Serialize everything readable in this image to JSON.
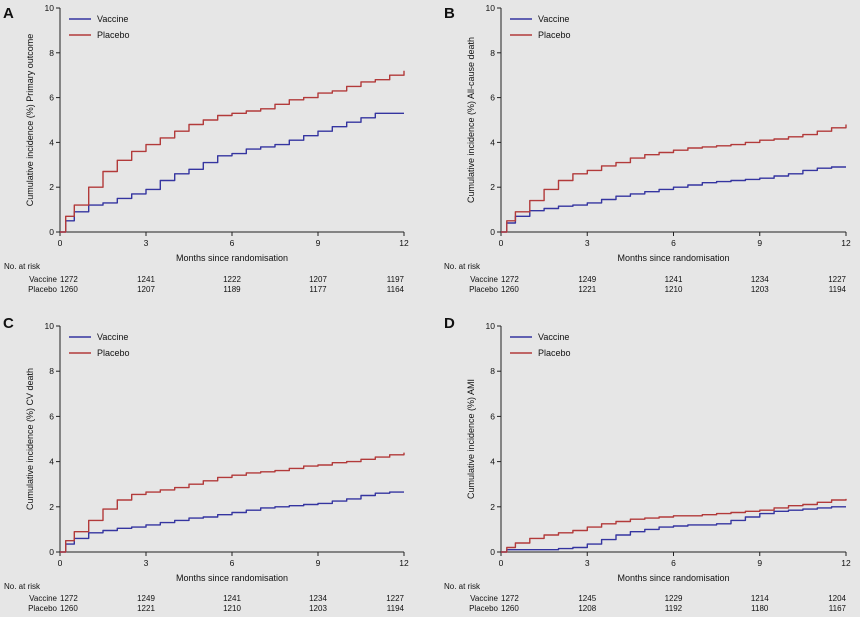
{
  "figure": {
    "xlabel": "Months since randomisation",
    "ylabel_prefix": "Cumulative incidence (%)",
    "risk_header": "No. at risk",
    "colors": {
      "vaccine": "#3535a0",
      "placebo": "#b23a3a",
      "axis": "#222222",
      "background": "#e6e6e6"
    }
  },
  "chart_data": [
    {
      "type": "line",
      "panel": "A",
      "title": "Primary outcome",
      "xlabel": "Months since randomisation",
      "ylabel": "Cumulative incidence (%)  Primary outcome",
      "xlim": [
        0,
        12
      ],
      "ylim": [
        0,
        10
      ],
      "xticks": [
        0,
        3,
        6,
        9,
        12
      ],
      "yticks": [
        0,
        2,
        4,
        6,
        8,
        10
      ],
      "legend": "top-left",
      "series": [
        {
          "name": "Vaccine",
          "color": "#3535a0",
          "x": [
            0,
            0.2,
            0.5,
            1,
            1.5,
            2,
            2.5,
            3,
            3.5,
            4,
            4.5,
            5,
            5.5,
            6,
            6.5,
            7,
            7.5,
            8,
            8.5,
            9,
            9.5,
            10,
            10.5,
            11,
            11.5,
            12
          ],
          "y": [
            0,
            0.5,
            0.9,
            1.2,
            1.3,
            1.5,
            1.7,
            1.9,
            2.3,
            2.6,
            2.8,
            3.1,
            3.4,
            3.5,
            3.7,
            3.8,
            3.9,
            4.1,
            4.3,
            4.5,
            4.7,
            4.9,
            5.1,
            5.3,
            5.3,
            5.3
          ]
        },
        {
          "name": "Placebo",
          "color": "#b23a3a",
          "x": [
            0,
            0.2,
            0.5,
            1,
            1.5,
            2,
            2.5,
            3,
            3.5,
            4,
            4.5,
            5,
            5.5,
            6,
            6.5,
            7,
            7.5,
            8,
            8.5,
            9,
            9.5,
            10,
            10.5,
            11,
            11.5,
            12
          ],
          "y": [
            0,
            0.7,
            1.2,
            2.0,
            2.7,
            3.2,
            3.6,
            3.9,
            4.2,
            4.5,
            4.8,
            5.0,
            5.2,
            5.3,
            5.4,
            5.5,
            5.7,
            5.9,
            6.0,
            6.2,
            6.3,
            6.5,
            6.7,
            6.8,
            7.0,
            7.2
          ]
        }
      ],
      "at_risk": {
        "labels": [
          "Vaccine",
          "Placebo"
        ],
        "rows": [
          [
            "1272",
            "1241",
            "1222",
            "1207",
            "1197"
          ],
          [
            "1260",
            "1207",
            "1189",
            "1177",
            "1164"
          ]
        ]
      }
    },
    {
      "type": "line",
      "panel": "B",
      "title": "All-cause death",
      "xlabel": "Months since randomisation",
      "ylabel": "Cumulative incidence (%)  All-cause death",
      "xlim": [
        0,
        12
      ],
      "ylim": [
        0,
        10
      ],
      "xticks": [
        0,
        3,
        6,
        9,
        12
      ],
      "yticks": [
        0,
        2,
        4,
        6,
        8,
        10
      ],
      "legend": "top-left",
      "series": [
        {
          "name": "Vaccine",
          "color": "#3535a0",
          "x": [
            0,
            0.2,
            0.5,
            1,
            1.5,
            2,
            2.5,
            3,
            3.5,
            4,
            4.5,
            5,
            5.5,
            6,
            6.5,
            7,
            7.5,
            8,
            8.5,
            9,
            9.5,
            10,
            10.5,
            11,
            11.5,
            12
          ],
          "y": [
            0,
            0.4,
            0.7,
            0.95,
            1.05,
            1.15,
            1.2,
            1.3,
            1.45,
            1.6,
            1.7,
            1.8,
            1.9,
            2.0,
            2.1,
            2.2,
            2.25,
            2.3,
            2.35,
            2.4,
            2.5,
            2.6,
            2.75,
            2.85,
            2.9,
            2.9
          ]
        },
        {
          "name": "Placebo",
          "color": "#b23a3a",
          "x": [
            0,
            0.2,
            0.5,
            1,
            1.5,
            2,
            2.5,
            3,
            3.5,
            4,
            4.5,
            5,
            5.5,
            6,
            6.5,
            7,
            7.5,
            8,
            8.5,
            9,
            9.5,
            10,
            10.5,
            11,
            11.5,
            12
          ],
          "y": [
            0,
            0.5,
            0.9,
            1.4,
            1.9,
            2.3,
            2.6,
            2.75,
            2.95,
            3.1,
            3.3,
            3.45,
            3.55,
            3.65,
            3.75,
            3.8,
            3.85,
            3.9,
            4.0,
            4.1,
            4.15,
            4.25,
            4.35,
            4.5,
            4.65,
            4.8
          ]
        }
      ],
      "at_risk": {
        "labels": [
          "Vaccine",
          "Placebo"
        ],
        "rows": [
          [
            "1272",
            "1249",
            "1241",
            "1234",
            "1227"
          ],
          [
            "1260",
            "1221",
            "1210",
            "1203",
            "1194"
          ]
        ]
      }
    },
    {
      "type": "line",
      "panel": "C",
      "title": "CV death",
      "xlabel": "Months since randomisation",
      "ylabel": "Cumulative incidence (%)  CV death",
      "xlim": [
        0,
        12
      ],
      "ylim": [
        0,
        10
      ],
      "xticks": [
        0,
        3,
        6,
        9,
        12
      ],
      "yticks": [
        0,
        2,
        4,
        6,
        8,
        10
      ],
      "legend": "top-left",
      "series": [
        {
          "name": "Vaccine",
          "color": "#3535a0",
          "x": [
            0,
            0.2,
            0.5,
            1,
            1.5,
            2,
            2.5,
            3,
            3.5,
            4,
            4.5,
            5,
            5.5,
            6,
            6.5,
            7,
            7.5,
            8,
            8.5,
            9,
            9.5,
            10,
            10.5,
            11,
            11.5,
            12
          ],
          "y": [
            0,
            0.35,
            0.6,
            0.85,
            0.95,
            1.05,
            1.1,
            1.2,
            1.3,
            1.4,
            1.5,
            1.55,
            1.65,
            1.75,
            1.85,
            1.95,
            2.0,
            2.05,
            2.1,
            2.15,
            2.25,
            2.35,
            2.5,
            2.6,
            2.65,
            2.65
          ]
        },
        {
          "name": "Placebo",
          "color": "#b23a3a",
          "x": [
            0,
            0.2,
            0.5,
            1,
            1.5,
            2,
            2.5,
            3,
            3.5,
            4,
            4.5,
            5,
            5.5,
            6,
            6.5,
            7,
            7.5,
            8,
            8.5,
            9,
            9.5,
            10,
            10.5,
            11,
            11.5,
            12
          ],
          "y": [
            0,
            0.5,
            0.9,
            1.4,
            1.9,
            2.3,
            2.55,
            2.65,
            2.75,
            2.85,
            3.0,
            3.15,
            3.3,
            3.4,
            3.5,
            3.55,
            3.6,
            3.7,
            3.8,
            3.85,
            3.95,
            4.0,
            4.1,
            4.2,
            4.3,
            4.4
          ]
        }
      ],
      "at_risk": {
        "labels": [
          "Vaccine",
          "Placebo"
        ],
        "rows": [
          [
            "1272",
            "1249",
            "1241",
            "1234",
            "1227"
          ],
          [
            "1260",
            "1221",
            "1210",
            "1203",
            "1194"
          ]
        ]
      }
    },
    {
      "type": "line",
      "panel": "D",
      "title": "AMI",
      "xlabel": "Months since randomisation",
      "ylabel": "Cumulative incidence (%)  AMI",
      "xlim": [
        0,
        12
      ],
      "ylim": [
        0,
        10
      ],
      "xticks": [
        0,
        3,
        6,
        9,
        12
      ],
      "yticks": [
        0,
        2,
        4,
        6,
        8,
        10
      ],
      "legend": "top-left",
      "series": [
        {
          "name": "Vaccine",
          "color": "#3535a0",
          "x": [
            0,
            0.2,
            0.5,
            1,
            1.5,
            2,
            2.5,
            3,
            3.5,
            4,
            4.5,
            5,
            5.5,
            6,
            6.5,
            7,
            7.5,
            8,
            8.5,
            9,
            9.5,
            10,
            10.5,
            11,
            11.5,
            12
          ],
          "y": [
            0,
            0.1,
            0.1,
            0.1,
            0.1,
            0.15,
            0.2,
            0.35,
            0.55,
            0.75,
            0.9,
            1.0,
            1.1,
            1.15,
            1.2,
            1.2,
            1.25,
            1.4,
            1.55,
            1.7,
            1.8,
            1.85,
            1.9,
            1.95,
            2.0,
            2.0
          ]
        },
        {
          "name": "Placebo",
          "color": "#b23a3a",
          "x": [
            0,
            0.2,
            0.5,
            1,
            1.5,
            2,
            2.5,
            3,
            3.5,
            4,
            4.5,
            5,
            5.5,
            6,
            6.5,
            7,
            7.5,
            8,
            8.5,
            9,
            9.5,
            10,
            10.5,
            11,
            11.5,
            12
          ],
          "y": [
            0,
            0.2,
            0.4,
            0.6,
            0.75,
            0.85,
            0.95,
            1.1,
            1.25,
            1.35,
            1.45,
            1.5,
            1.55,
            1.6,
            1.6,
            1.65,
            1.7,
            1.75,
            1.8,
            1.85,
            1.95,
            2.05,
            2.1,
            2.2,
            2.3,
            2.35
          ]
        }
      ],
      "at_risk": {
        "labels": [
          "Vaccine",
          "Placebo"
        ],
        "rows": [
          [
            "1272",
            "1245",
            "1229",
            "1214",
            "1204"
          ],
          [
            "1260",
            "1208",
            "1192",
            "1180",
            "1167"
          ]
        ]
      }
    }
  ]
}
